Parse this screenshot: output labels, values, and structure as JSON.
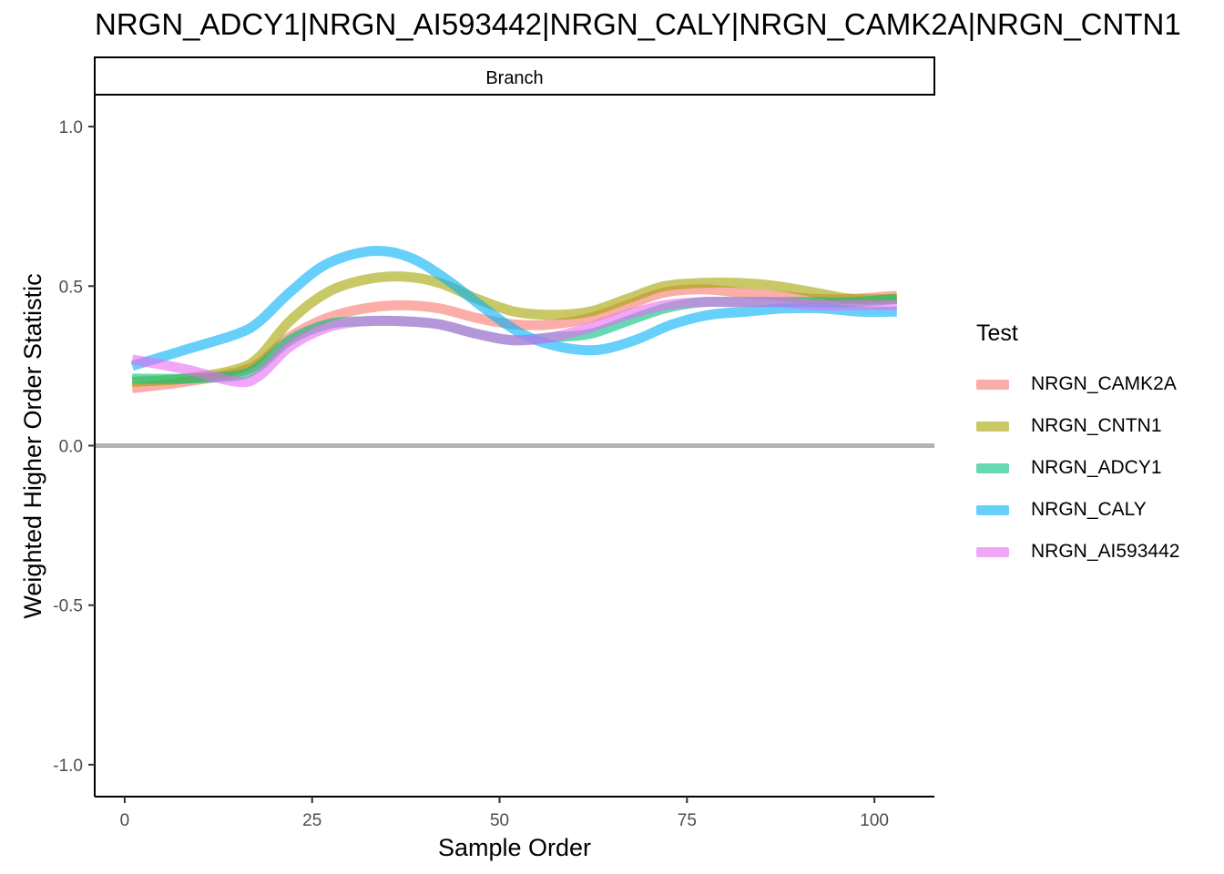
{
  "chart_data": {
    "type": "line",
    "title": "NRGN_ADCY1|NRGN_AI593442|NRGN_CALY|NRGN_CAMK2A|NRGN_CNTN1",
    "facet_label": "Branch",
    "xlabel": "Sample Order",
    "ylabel": "Weighted Higher Order Statistic",
    "xlim": [
      -4,
      108
    ],
    "ylim": [
      -1.1,
      1.1
    ],
    "x_ticks": [
      0,
      25,
      50,
      75,
      100
    ],
    "x_tick_labels": [
      "0",
      "25",
      "50",
      "75",
      "100"
    ],
    "y_ticks": [
      -1.0,
      -0.5,
      0.0,
      0.5,
      1.0
    ],
    "y_tick_labels": [
      "-1.0",
      "-0.5",
      "0.0",
      "0.5",
      "1.0"
    ],
    "reference_line_y": 0.0,
    "legend_title": "Test",
    "legend_position": "right",
    "grid": false,
    "series": [
      {
        "name": "NRGN_CAMK2A",
        "color": "#F8766D",
        "x": [
          1,
          8,
          15,
          18,
          22,
          27,
          32,
          37,
          42,
          47,
          52,
          57,
          62,
          67,
          72,
          77,
          82,
          87,
          92,
          97,
          103
        ],
        "values": [
          0.18,
          0.2,
          0.23,
          0.26,
          0.34,
          0.4,
          0.43,
          0.44,
          0.43,
          0.4,
          0.38,
          0.38,
          0.4,
          0.44,
          0.48,
          0.49,
          0.48,
          0.47,
          0.46,
          0.46,
          0.47
        ]
      },
      {
        "name": "NRGN_CNTN1",
        "color": "#A3A500",
        "x": [
          1,
          8,
          15,
          18,
          22,
          27,
          32,
          37,
          42,
          47,
          52,
          57,
          62,
          67,
          72,
          77,
          82,
          87,
          92,
          97,
          103
        ],
        "values": [
          0.2,
          0.21,
          0.24,
          0.28,
          0.39,
          0.48,
          0.52,
          0.53,
          0.51,
          0.46,
          0.42,
          0.41,
          0.42,
          0.46,
          0.5,
          0.51,
          0.51,
          0.5,
          0.48,
          0.46,
          0.46
        ]
      },
      {
        "name": "NRGN_ADCY1",
        "color": "#00BF7D",
        "x": [
          1,
          8,
          15,
          18,
          22,
          27,
          32,
          37,
          42,
          47,
          52,
          57,
          62,
          67,
          72,
          77,
          82,
          87,
          92,
          97,
          103
        ],
        "values": [
          0.21,
          0.21,
          0.22,
          0.25,
          0.33,
          0.38,
          0.39,
          0.39,
          0.38,
          0.35,
          0.33,
          0.34,
          0.35,
          0.39,
          0.43,
          0.45,
          0.45,
          0.45,
          0.45,
          0.45,
          0.46
        ]
      },
      {
        "name": "NRGN_CALY",
        "color": "#00B0F6",
        "x": [
          1,
          8,
          15,
          18,
          22,
          27,
          33,
          38,
          43,
          48,
          53,
          58,
          63,
          68,
          73,
          78,
          83,
          88,
          93,
          98,
          103
        ],
        "values": [
          0.25,
          0.3,
          0.35,
          0.39,
          0.48,
          0.57,
          0.61,
          0.59,
          0.52,
          0.43,
          0.35,
          0.31,
          0.3,
          0.33,
          0.38,
          0.41,
          0.42,
          0.43,
          0.43,
          0.42,
          0.42
        ]
      },
      {
        "name": "NRGN_AI593442",
        "color": "#E76BF3",
        "x": [
          1,
          8,
          15,
          18,
          22,
          27,
          32,
          37,
          42,
          47,
          52,
          57,
          62,
          67,
          72,
          77,
          82,
          87,
          92,
          97,
          103
        ],
        "values": [
          0.27,
          0.24,
          0.2,
          0.22,
          0.31,
          0.37,
          0.39,
          0.39,
          0.38,
          0.35,
          0.33,
          0.34,
          0.37,
          0.41,
          0.44,
          0.45,
          0.45,
          0.45,
          0.44,
          0.44,
          0.44
        ]
      }
    ]
  }
}
